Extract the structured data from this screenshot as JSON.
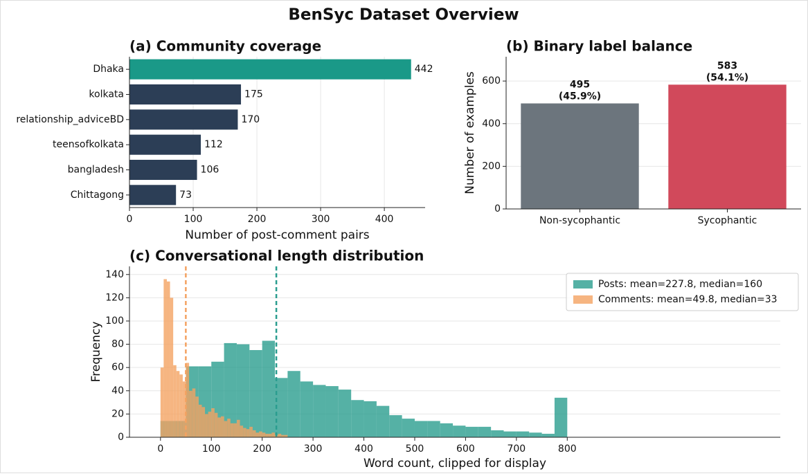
{
  "title": "BenSyc Dataset Overview",
  "chart_data": [
    {
      "type": "barh",
      "title": "(a) Community coverage",
      "xlabel": "Number of post-comment pairs",
      "categories": [
        "Dhaka",
        "kolkata",
        "relationship_adviceBD",
        "teensofkolkata",
        "bangladesh",
        "Chittagong"
      ],
      "values": [
        442,
        175,
        170,
        112,
        106,
        73
      ],
      "colors": [
        "#1a9988",
        "#2c3e56",
        "#2c3e56",
        "#2c3e56",
        "#2c3e56",
        "#2c3e56"
      ],
      "label_color": "#2c3e56",
      "xlim": [
        0,
        464
      ],
      "xticks": [
        0,
        100,
        200,
        300,
        400
      ],
      "grid": true
    },
    {
      "type": "bar",
      "title": "(b) Binary label balance",
      "ylabel": "Number of examples",
      "categories": [
        "Non-sycophantic",
        "Sycophantic"
      ],
      "values": [
        495,
        583
      ],
      "share_labels": [
        "(45.9%)",
        "(54.1%)"
      ],
      "colors": [
        "#6c757d",
        "#d1495b"
      ],
      "ylim": [
        0,
        714
      ],
      "yticks": [
        0,
        200,
        400,
        600
      ],
      "grid": true
    },
    {
      "type": "histogram",
      "title": "(c) Conversational length distribution",
      "xlabel": "Word count, clipped for display",
      "ylabel": "Frequency",
      "series": [
        {
          "name": "Posts: mean=227.8, median=160",
          "color": "#2a9d8f",
          "mean": 227.8,
          "bins": [
            0,
            25,
            50,
            75,
            100,
            125,
            150,
            175,
            200,
            225,
            250,
            275,
            300,
            325,
            350,
            375,
            400,
            425,
            450,
            475,
            500,
            525,
            550,
            575,
            600,
            625,
            650,
            675,
            700,
            725,
            750,
            775,
            800
          ],
          "values": [
            14,
            14,
            61,
            61,
            65,
            81,
            80,
            75,
            83,
            51,
            57,
            48,
            45,
            44,
            41,
            32,
            31,
            27,
            19,
            16,
            14,
            14,
            12,
            10,
            9,
            9,
            6,
            5,
            5,
            4,
            3,
            34
          ]
        },
        {
          "name": "Comments: mean=49.8, median=33",
          "color": "#f4a261",
          "mean": 49.8,
          "bins": [
            0,
            6.25,
            12.5,
            18.75,
            25,
            31.25,
            37.5,
            43.75,
            50,
            56.25,
            62.5,
            68.75,
            75,
            81.25,
            87.5,
            93.75,
            100,
            106.25,
            112.5,
            118.75,
            125,
            131.25,
            137.5,
            143.75,
            150,
            156.25,
            162.5,
            168.75,
            175,
            181.25,
            187.5,
            193.75,
            200,
            206.25,
            212.5,
            218.75,
            225,
            231.25,
            237.5,
            243.75,
            250
          ],
          "values": [
            60,
            136,
            134,
            120,
            62,
            57,
            54,
            48,
            64,
            40,
            42,
            35,
            28,
            26,
            20,
            22,
            25,
            21,
            17,
            18,
            14,
            16,
            12,
            12,
            15,
            10,
            8,
            7,
            9,
            6,
            4,
            5,
            4,
            3,
            3,
            4,
            2,
            3,
            2,
            2
          ]
        }
      ],
      "xlim": [
        -61,
        1219
      ],
      "xticks": [
        0,
        100,
        200,
        300,
        400,
        500,
        600,
        700,
        800
      ],
      "ylim": [
        0,
        147
      ],
      "yticks": [
        0,
        20,
        40,
        60,
        80,
        100,
        120,
        140
      ],
      "grid": true,
      "legend": "upper right"
    }
  ]
}
